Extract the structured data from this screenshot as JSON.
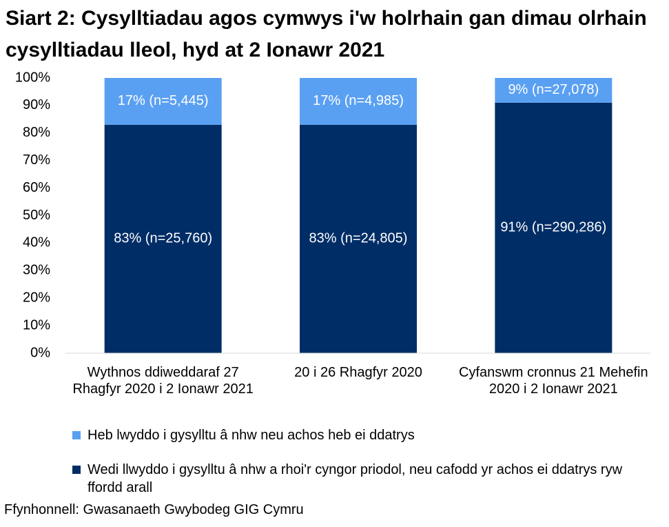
{
  "chart_data": {
    "type": "stacked_bar",
    "title": "Siart 2: Cysylltiadau agos cymwys i'w holrhain gan dimau olrhain cysylltiadau lleol, hyd at 2 Ionawr 2021",
    "categories": [
      "Wythnos ddiweddaraf 27 Rhagfyr 2020 i 2 Ionawr 2021",
      "20 i 26 Rhagfyr 2020",
      "Cyfanswm cronnus 21 Mehefin 2020 i 2 Ionawr 2021"
    ],
    "series": [
      {
        "name": "Heb lwyddo i gysylltu â nhw neu achos heb ei ddatrys",
        "color": "#5aa0f2",
        "values": [
          17,
          17,
          9
        ],
        "value_labels": [
          "17% (n=5,445)",
          "17% (n=4,985)",
          "9% (n=27,078)"
        ]
      },
      {
        "name": "Wedi llwyddo i gysylltu â nhw a rhoi'r cyngor priodol, neu cafodd yr achos ei ddatrys ryw ffordd arall",
        "color": "#002d66",
        "values": [
          83,
          83,
          91
        ],
        "value_labels": [
          "83% (n=25,760)",
          "83% (n=24,805)",
          "91% (n=290,286)"
        ]
      }
    ],
    "ylim": [
      0,
      100
    ],
    "yticks": [
      {
        "value": 0,
        "label": "0%"
      },
      {
        "value": 10,
        "label": "10%"
      },
      {
        "value": 20,
        "label": "20%"
      },
      {
        "value": 30,
        "label": "30%"
      },
      {
        "value": 40,
        "label": "40%"
      },
      {
        "value": 50,
        "label": "50%"
      },
      {
        "value": 60,
        "label": "60%"
      },
      {
        "value": 70,
        "label": "70%"
      },
      {
        "value": 80,
        "label": "80%"
      },
      {
        "value": 90,
        "label": "90%"
      },
      {
        "value": 100,
        "label": "100%"
      }
    ],
    "grid": false,
    "source": "Ffynhonnell: Gwasanaeth Gwybodeg GIG Cymru"
  }
}
